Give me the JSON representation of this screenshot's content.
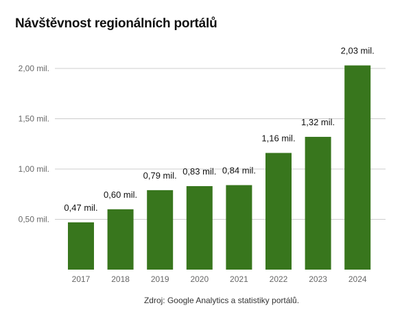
{
  "chart_data": {
    "type": "bar",
    "title": "Návštěvnost regionálních portálů",
    "categories": [
      "2017",
      "2018",
      "2019",
      "2020",
      "2021",
      "2022",
      "2023",
      "2024"
    ],
    "values": [
      0.47,
      0.6,
      0.79,
      0.83,
      0.84,
      1.16,
      1.32,
      2.03
    ],
    "data_labels": [
      "0,47  mil.",
      "0,60  mil.",
      "0,79  mil.",
      "0,83  mil.",
      "0,84  mil.",
      "1,16  mil.",
      "1,32  mil.",
      "2,03  mil."
    ],
    "y_ticks": [
      0.5,
      1.0,
      1.5,
      2.0
    ],
    "y_tick_labels": [
      "0,50  mil.",
      "1,00  mil.",
      "1,50  mil.",
      "2,00  mil."
    ],
    "ylim": [
      0,
      2.0
    ],
    "grid": true,
    "legend": "none",
    "source": "Zdroj: Google Analytics a statistiky portálů.",
    "colors": {
      "bar": "#38761d",
      "grid": "#cccccc",
      "tick_text": "#666666",
      "label_text": "#111111"
    }
  }
}
